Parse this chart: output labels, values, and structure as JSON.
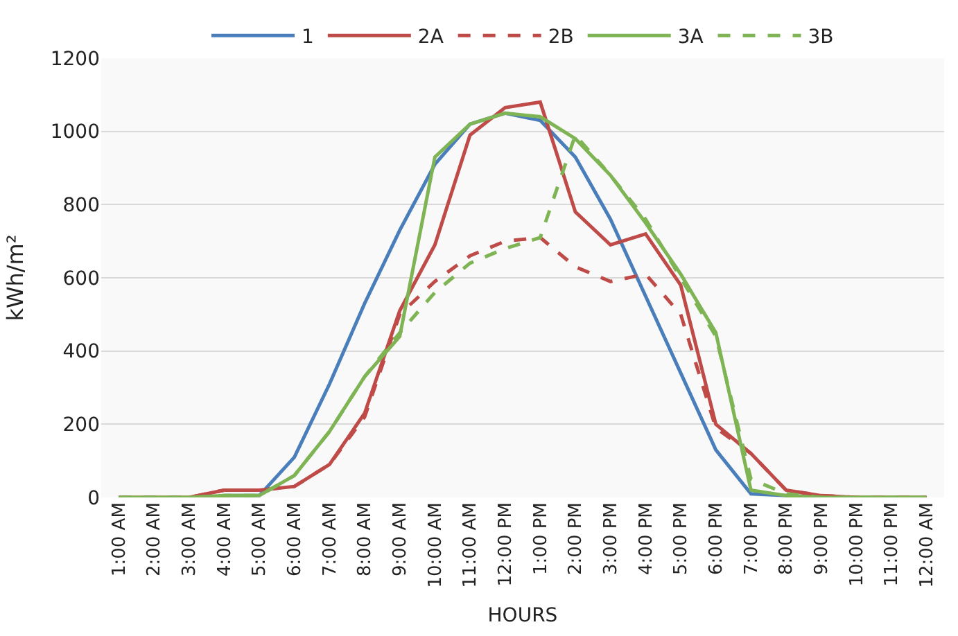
{
  "chart_data": {
    "type": "line",
    "xlabel": "HOURS",
    "ylabel": "kWh/m²",
    "categories": [
      "1:00 AM",
      "2:00 AM",
      "3:00 AM",
      "4:00 AM",
      "5:00 AM",
      "6:00 AM",
      "7:00 AM",
      "8:00 AM",
      "9:00 AM",
      "10:00 AM",
      "11:00 AM",
      "12:00 PM",
      "1:00 PM",
      "2:00 PM",
      "3:00 PM",
      "4:00 PM",
      "5:00 PM",
      "6:00 PM",
      "7:00 PM",
      "8:00 PM",
      "9:00 PM",
      "10:00 PM",
      "11:00 PM",
      "12:00 AM"
    ],
    "series": [
      {
        "name": "1",
        "color": "#4a7ebb",
        "line_style": "solid",
        "values": [
          null,
          null,
          null,
          5,
          5,
          110,
          310,
          530,
          730,
          910,
          1020,
          1050,
          1030,
          930,
          760,
          550,
          340,
          130,
          10,
          5,
          0,
          null,
          null,
          null
        ]
      },
      {
        "name": "2A",
        "color": "#be4b48",
        "line_style": "solid",
        "values": [
          0,
          0,
          0,
          20,
          20,
          30,
          90,
          230,
          510,
          690,
          990,
          1065,
          1080,
          780,
          690,
          720,
          580,
          200,
          120,
          20,
          5,
          0,
          0,
          0
        ]
      },
      {
        "name": "2B",
        "color": "#be4b48",
        "line_style": "dashed",
        "values": [
          0,
          0,
          0,
          20,
          20,
          30,
          90,
          220,
          500,
          590,
          660,
          700,
          710,
          630,
          590,
          610,
          500,
          190,
          120,
          20,
          5,
          0,
          0,
          0
        ]
      },
      {
        "name": "3A",
        "color": "#7eb454",
        "line_style": "solid",
        "values": [
          0,
          0,
          0,
          5,
          5,
          60,
          180,
          330,
          440,
          930,
          1020,
          1050,
          1040,
          980,
          880,
          750,
          610,
          450,
          20,
          5,
          0,
          0,
          0,
          0
        ]
      },
      {
        "name": "3B",
        "color": "#7eb454",
        "line_style": "dashed",
        "values": [
          0,
          0,
          0,
          5,
          5,
          60,
          180,
          330,
          450,
          560,
          640,
          680,
          710,
          990,
          880,
          760,
          600,
          440,
          50,
          10,
          0,
          0,
          0,
          0
        ]
      }
    ],
    "ylim": [
      0,
      1200
    ],
    "yticks": [
      0,
      200,
      400,
      600,
      800,
      1000,
      1200
    ],
    "grid": "y",
    "legend": "top"
  }
}
